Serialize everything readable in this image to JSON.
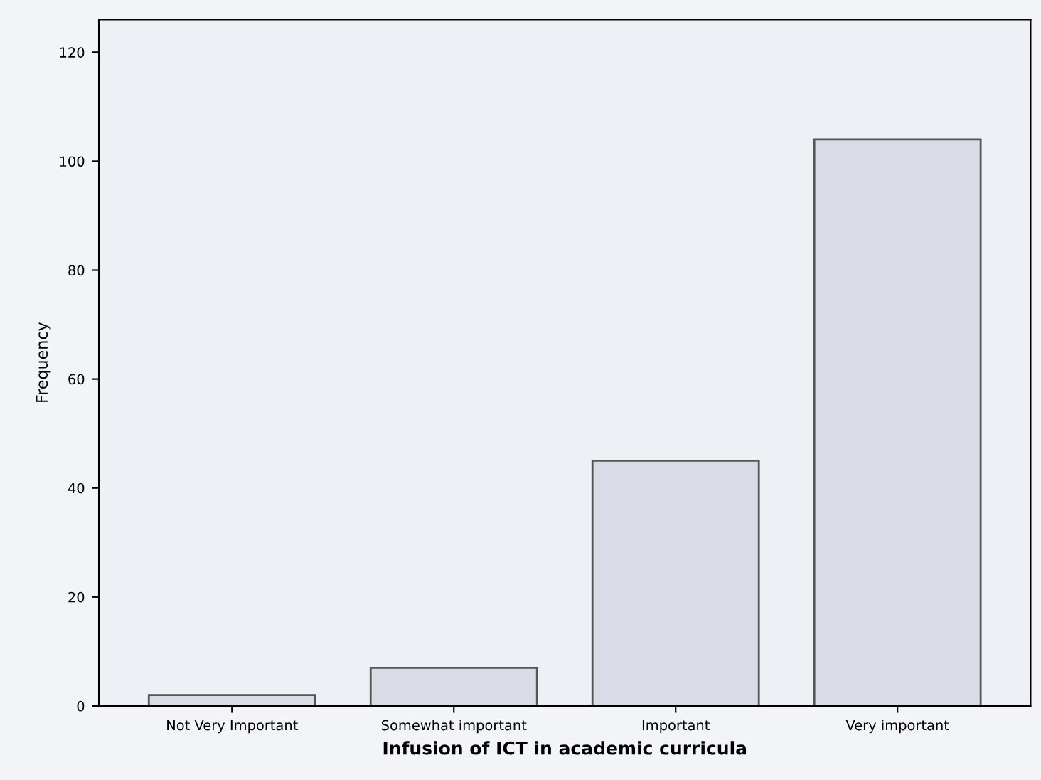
{
  "chart_data": {
    "type": "bar",
    "xlabel": "Infusion of ICT in academic curricula",
    "ylabel": "Frequency",
    "categories": [
      "Not Very Important",
      "Somewhat important",
      "Important",
      "Very important"
    ],
    "values": [
      2,
      7,
      45,
      104
    ],
    "color": "#d9dbe6",
    "ylim": [
      0,
      126
    ],
    "yticks": [
      0,
      20,
      40,
      60,
      80,
      100,
      120
    ],
    "grid": false
  }
}
